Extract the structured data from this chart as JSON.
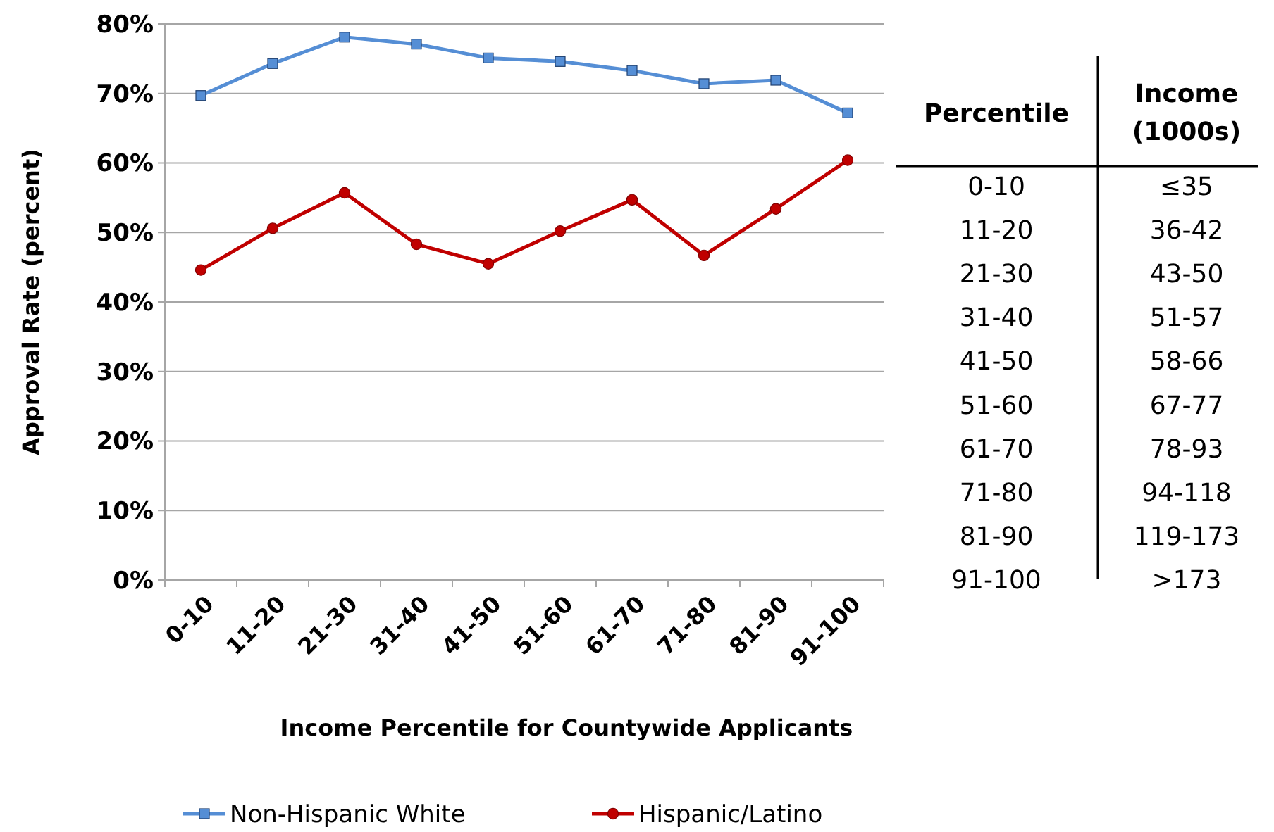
{
  "chart_data": [
    {
      "type": "line",
      "ylabel": "Approval Rate (percent)",
      "xlabel": "Income Percentile for Countywide Applicants",
      "categories": [
        "0-10",
        "11-20",
        "21-30",
        "31-40",
        "41-50",
        "51-60",
        "61-70",
        "71-80",
        "81-90",
        "91-100"
      ],
      "series": [
        {
          "name": "Non-Hispanic White",
          "color": "#558ed5",
          "marker": "square",
          "values": [
            69.7,
            74.3,
            78.1,
            77.1,
            75.1,
            74.6,
            73.3,
            71.4,
            71.9,
            67.2
          ]
        },
        {
          "name": "Hispanic/Latino",
          "color": "#c00000",
          "marker": "circle",
          "values": [
            44.6,
            50.6,
            55.7,
            48.3,
            45.5,
            50.2,
            54.7,
            46.7,
            53.4,
            60.4
          ]
        }
      ],
      "ylim": [
        0,
        80
      ],
      "yticks": [
        {
          "value": 0,
          "label": "0%"
        },
        {
          "value": 10,
          "label": "10%"
        },
        {
          "value": 20,
          "label": "20%"
        },
        {
          "value": 30,
          "label": "30%"
        },
        {
          "value": 40,
          "label": "40%"
        },
        {
          "value": 50,
          "label": "50%"
        },
        {
          "value": 60,
          "label": "60%"
        },
        {
          "value": 70,
          "label": "70%"
        },
        {
          "value": 80,
          "label": "80%"
        }
      ],
      "grid": "y",
      "legend": "bottom",
      "line_style": "solid"
    },
    {
      "type": "other",
      "categories": [
        "Percentile",
        "Income (1000s)"
      ],
      "cell_labels": [
        [
          "0-10",
          "≤35"
        ],
        [
          "11-20",
          "36-42"
        ],
        [
          "21-30",
          "43-50"
        ],
        [
          "31-40",
          "51-57"
        ],
        [
          "41-50",
          "58-66"
        ],
        [
          "51-60",
          "67-77"
        ],
        [
          "61-70",
          "78-93"
        ],
        [
          "71-80",
          "94-118"
        ],
        [
          "81-90",
          "119-173"
        ],
        [
          "91-100",
          ">173"
        ]
      ]
    }
  ]
}
